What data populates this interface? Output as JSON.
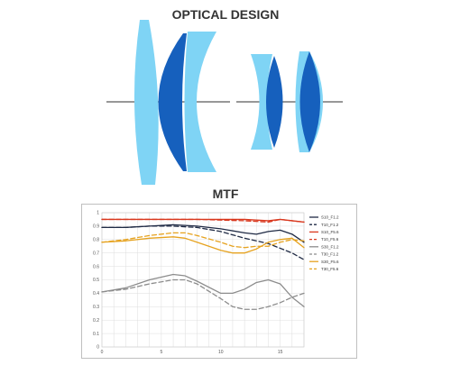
{
  "optical_title": "OPTICAL DESIGN",
  "mtf_title": "MTF",
  "colors": {
    "light_lens": "#7fd4f5",
    "dark_lens": "#1660bd",
    "axis": "#777777"
  },
  "chart_data": {
    "type": "line",
    "title": "MTF",
    "xlabel": "",
    "ylabel": "",
    "xlim": [
      0,
      17
    ],
    "ylim": [
      0,
      1
    ],
    "x_ticks": [
      0,
      5,
      10,
      15
    ],
    "x_tick_labels": [
      "0",
      "5",
      "10",
      "15"
    ],
    "y_ticks": [
      0,
      0.1,
      0.2,
      0.3,
      0.4,
      0.5,
      0.6,
      0.7,
      0.8,
      0.9,
      1
    ],
    "y_tick_labels": [
      "0",
      "0.1",
      "0.2",
      "0.3",
      "0.4",
      "0.5",
      "0.6",
      "0.7",
      "0.8",
      "0.9",
      "1"
    ],
    "grid": true,
    "legend_position": "right",
    "series": [
      {
        "name": "S10_F1.2",
        "color": "#1f2a44",
        "dash": false,
        "x": [
          0,
          2,
          4,
          6,
          8,
          10,
          12,
          13,
          14,
          15,
          16,
          17
        ],
        "y": [
          0.89,
          0.89,
          0.9,
          0.91,
          0.9,
          0.88,
          0.85,
          0.84,
          0.86,
          0.87,
          0.84,
          0.78
        ]
      },
      {
        "name": "T10_F1.2",
        "color": "#1f2a44",
        "dash": true,
        "x": [
          0,
          2,
          4,
          6,
          8,
          10,
          12,
          14,
          16,
          17
        ],
        "y": [
          0.89,
          0.89,
          0.9,
          0.9,
          0.89,
          0.86,
          0.81,
          0.77,
          0.7,
          0.65
        ]
      },
      {
        "name": "S10_F5.6",
        "color": "#d9381e",
        "dash": false,
        "x": [
          0,
          4,
          8,
          12,
          14,
          15,
          16,
          17
        ],
        "y": [
          0.95,
          0.95,
          0.95,
          0.95,
          0.94,
          0.95,
          0.94,
          0.93
        ]
      },
      {
        "name": "T10_F5.6",
        "color": "#d9381e",
        "dash": true,
        "x": [
          0,
          4,
          8,
          12,
          14,
          15,
          16,
          17
        ],
        "y": [
          0.95,
          0.95,
          0.95,
          0.94,
          0.93,
          0.95,
          0.94,
          0.93
        ]
      },
      {
        "name": "S30_F1.2",
        "color": "#8c8c8c",
        "dash": false,
        "x": [
          0,
          2,
          4,
          6,
          7,
          8,
          10,
          11,
          12,
          13,
          14,
          15,
          16,
          17
        ],
        "y": [
          0.41,
          0.44,
          0.5,
          0.54,
          0.53,
          0.49,
          0.4,
          0.4,
          0.43,
          0.48,
          0.5,
          0.47,
          0.37,
          0.3
        ]
      },
      {
        "name": "T30_F1.2",
        "color": "#8c8c8c",
        "dash": true,
        "x": [
          0,
          2,
          4,
          6,
          7,
          8,
          10,
          11,
          12,
          13,
          14,
          15,
          16,
          17
        ],
        "y": [
          0.41,
          0.43,
          0.47,
          0.5,
          0.5,
          0.47,
          0.36,
          0.3,
          0.28,
          0.28,
          0.3,
          0.33,
          0.37,
          0.4
        ]
      },
      {
        "name": "S30_F5.6",
        "color": "#e6a21e",
        "dash": false,
        "x": [
          0,
          2,
          4,
          6,
          7,
          8,
          10,
          11,
          12,
          13,
          14,
          15,
          16,
          17
        ],
        "y": [
          0.78,
          0.79,
          0.81,
          0.82,
          0.81,
          0.78,
          0.72,
          0.7,
          0.7,
          0.73,
          0.78,
          0.8,
          0.81,
          0.74
        ]
      },
      {
        "name": "T30_F5.6",
        "color": "#e6a21e",
        "dash": true,
        "x": [
          0,
          2,
          4,
          6,
          7,
          8,
          10,
          11,
          12,
          13,
          14,
          15,
          16,
          17
        ],
        "y": [
          0.78,
          0.8,
          0.83,
          0.85,
          0.85,
          0.83,
          0.78,
          0.75,
          0.74,
          0.75,
          0.75,
          0.78,
          0.8,
          0.79
        ]
      }
    ]
  }
}
